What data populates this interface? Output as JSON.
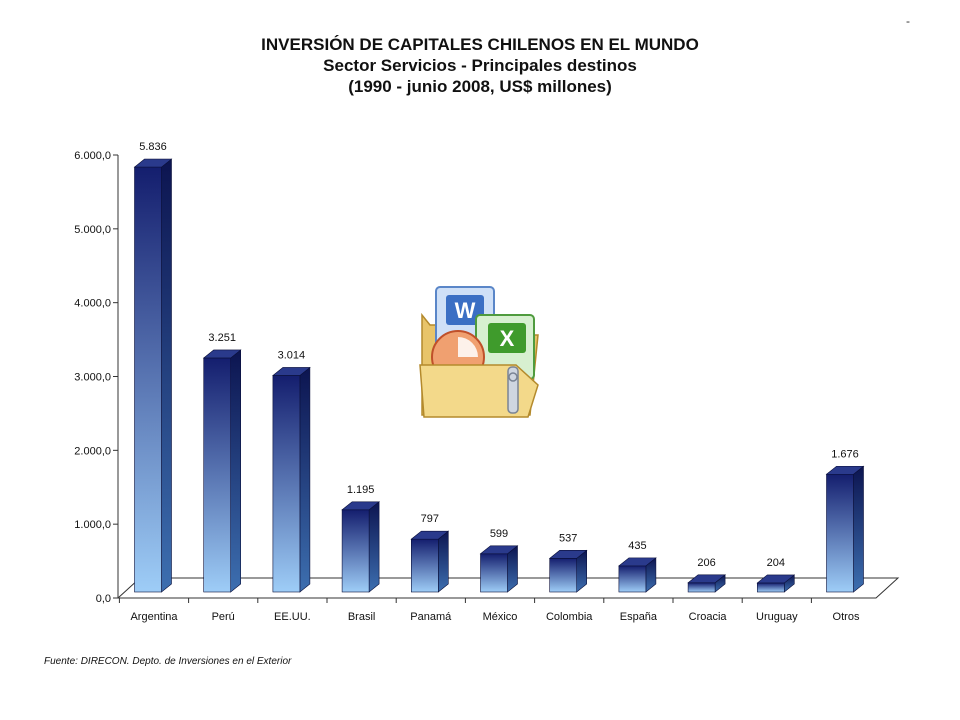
{
  "chart_data": {
    "type": "bar",
    "title": "INVERSIÓN DE CAPITALES CHILENOS EN EL MUNDO",
    "subtitle": "Sector Servicios - Principales destinos",
    "subtitle2": "(1990 - junio 2008, US$ millones)",
    "categories": [
      "Argentina",
      "Perú",
      "EE.UU.",
      "Brasil",
      "Panamá",
      "México",
      "Colombia",
      "España",
      "Croacia",
      "Uruguay",
      "Otros"
    ],
    "values": [
      5836,
      3251,
      3014,
      1195,
      797,
      599,
      537,
      435,
      206,
      204,
      1676
    ],
    "value_labels": [
      "5.836",
      "3.251",
      "3.014",
      "1.195",
      "797",
      "599",
      "537",
      "435",
      "206",
      "204",
      "1.676"
    ],
    "y_ticks": [
      0,
      1000,
      2000,
      3000,
      4000,
      5000,
      6000
    ],
    "y_tick_labels": [
      "0,0",
      "1.000,0",
      "2.000,0",
      "3.000,0",
      "4.000,0",
      "5.000,0",
      "6.000,0"
    ],
    "ylim": [
      0,
      6000
    ],
    "grid": false,
    "legend": "none",
    "bar_style": "3d-gradient",
    "colors": {
      "bar_top": "#141e6e",
      "bar_bottom": "#9ecdf7",
      "axis": "#333333"
    }
  },
  "source_note": "Fuente: DIRECON. Depto. de Inversiones en el Exterior",
  "corner_mark": "-",
  "office_icon": "office-suite-icon"
}
